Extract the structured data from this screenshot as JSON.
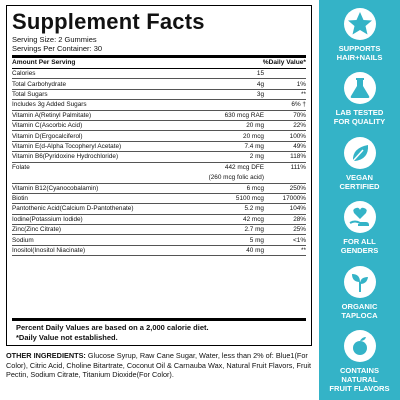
{
  "facts": {
    "title": "Supplement Facts",
    "serving_size": "Serving Size: 2 Gummies",
    "servings_per_container": "Servings Per Container: 30",
    "header_left": "Amount Per Serving",
    "header_right": "%Daily Value*",
    "rows": [
      {
        "name": "Calories",
        "amount": "15",
        "dv": ""
      },
      {
        "name": "Total Carbohydrate",
        "amount": "4g",
        "dv": "1%"
      },
      {
        "name": "Total Sugars",
        "amount": "3g",
        "dv": "**"
      },
      {
        "name": "Includes 3g Added Sugars",
        "amount": "",
        "dv": "6% †"
      },
      {
        "name": "Vitamin A(Retinyl Palmitate)",
        "amount": "630 mcg RAE",
        "dv": "70%"
      },
      {
        "name": "Vitamin C(Ascorbic Acid)",
        "amount": "20 mg",
        "dv": "22%"
      },
      {
        "name": "Vitamin D(Ergocalciferol)",
        "amount": "20 mcg",
        "dv": "100%"
      },
      {
        "name": "Vitamin E(d-Alpha Tocopheryl Acetate)",
        "amount": "7.4 mg",
        "dv": "49%"
      },
      {
        "name": "Vitamin B6(Pyridoxine Hydrochloride)",
        "amount": "2 mg",
        "dv": "118%"
      },
      {
        "name": "Folate",
        "amount": "442 mcg DFE",
        "amount2": "(260 mcg folic acid)",
        "dv": "111%"
      },
      {
        "name": "Vitamin B12(Cyanocobalamin)",
        "amount": "6 mcg",
        "dv": "250%"
      },
      {
        "name": "Biotin",
        "amount": "5100 mcg",
        "dv": "17000%"
      },
      {
        "name": "Pantothenic Acid(Calcium D-Pantothenate)",
        "amount": "5.2 mg",
        "dv": "104%"
      },
      {
        "name": "Iodine(Potassium Iodide)",
        "amount": "42 mcg",
        "dv": "28%"
      },
      {
        "name": "Zinc(Zinc Citrate)",
        "amount": "2.7 mg",
        "dv": "25%"
      },
      {
        "name": "Sodium",
        "amount": "5 mg",
        "dv": "<1%"
      },
      {
        "name": "Inositol(Inositol Niacinate)",
        "amount": "40 mg",
        "dv": "**"
      }
    ],
    "footnote_1": "Percent Daily Values are based on a 2,000 calorie diet.",
    "footnote_2": "*Daily Value not established."
  },
  "ingredients": {
    "label": "OTHER INGREDIENTS:",
    "text": "Glucose Syrup, Raw Cane Sugar, Water, less than 2% of: Blue1(For Color), Citric Acid, Choline Bitartrate, Coconut Oil & Carnauba Wax, Natural Fruit Flavors, Fruit Pectin, Sodium Citrate, Titanium Dioxide(For Color)."
  },
  "badges": {
    "bg_color": "#34b3c7",
    "items": [
      {
        "icon": "star-icon",
        "label": "SUPPORTS\nHAIR+NAILS"
      },
      {
        "icon": "flask-icon",
        "label": "LAB TESTED\nFOR QUALITY"
      },
      {
        "icon": "leaf-icon",
        "label": "VEGAN\nCERTIFIED"
      },
      {
        "icon": "heart-hand-icon",
        "label": "FOR ALL\nGENDERS"
      },
      {
        "icon": "sprout-icon",
        "label": "ORGANIC\nTAPLOCA"
      },
      {
        "icon": "fruit-icon",
        "label": "CONTAINS\nNATURAL\nFRUIT FLAVORS"
      }
    ]
  }
}
